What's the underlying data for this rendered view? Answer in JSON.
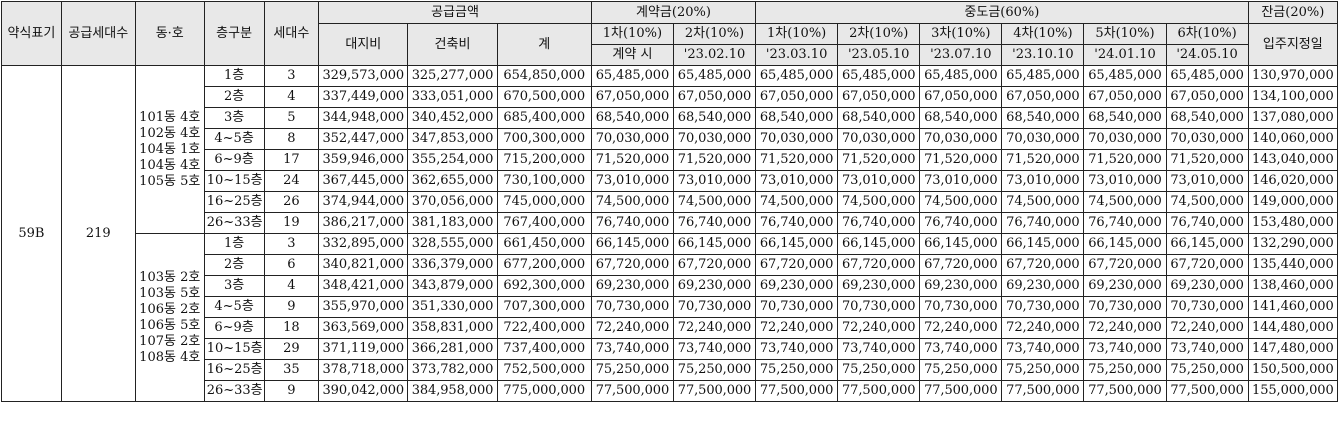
{
  "header": {
    "type_label": "약식표기",
    "supply_units_label": "공급세대수",
    "dong_ho_label": "동·호",
    "floor_label": "층구분",
    "units_label": "세대수",
    "supply_price_label": "공급금액",
    "land_label": "대지비",
    "building_label": "건축비",
    "total_label": "계",
    "contract_label": "계약금(20%)",
    "interim_label": "중도금(60%)",
    "balance_label": "잔금(20%)",
    "contract_installments": [
      {
        "name": "1차(10%)",
        "date": "계약 시"
      },
      {
        "name": "2차(10%)",
        "date": "'23.02.10"
      }
    ],
    "interim_installments": [
      {
        "name": "1차(10%)",
        "date": "'23.03.10"
      },
      {
        "name": "2차(10%)",
        "date": "'23.05.10"
      },
      {
        "name": "3차(10%)",
        "date": "'23.07.10"
      },
      {
        "name": "4차(10%)",
        "date": "'23.10.10"
      },
      {
        "name": "5차(10%)",
        "date": "'24.01.10"
      },
      {
        "name": "6차(10%)",
        "date": "'24.05.10"
      }
    ],
    "balance_date": "입주지정일"
  },
  "type": "59B",
  "supply_units": "219",
  "groups": [
    {
      "dong_ho": [
        "101동 4호",
        "102동 4호",
        "104동 1호",
        "104동 4호",
        "105동 5호"
      ],
      "rows": [
        {
          "floor": "1층",
          "units": "3",
          "land": "329,573,000",
          "building": "325,277,000",
          "total": "654,850,000",
          "c1": "65,485,000",
          "c2": "65,485,000",
          "i1": "65,485,000",
          "i2": "65,485,000",
          "i3": "65,485,000",
          "i4": "65,485,000",
          "i5": "65,485,000",
          "i6": "65,485,000",
          "bal": "130,970,000"
        },
        {
          "floor": "2층",
          "units": "4",
          "land": "337,449,000",
          "building": "333,051,000",
          "total": "670,500,000",
          "c1": "67,050,000",
          "c2": "67,050,000",
          "i1": "67,050,000",
          "i2": "67,050,000",
          "i3": "67,050,000",
          "i4": "67,050,000",
          "i5": "67,050,000",
          "i6": "67,050,000",
          "bal": "134,100,000"
        },
        {
          "floor": "3층",
          "units": "5",
          "land": "344,948,000",
          "building": "340,452,000",
          "total": "685,400,000",
          "c1": "68,540,000",
          "c2": "68,540,000",
          "i1": "68,540,000",
          "i2": "68,540,000",
          "i3": "68,540,000",
          "i4": "68,540,000",
          "i5": "68,540,000",
          "i6": "68,540,000",
          "bal": "137,080,000"
        },
        {
          "floor": "4~5층",
          "units": "8",
          "land": "352,447,000",
          "building": "347,853,000",
          "total": "700,300,000",
          "c1": "70,030,000",
          "c2": "70,030,000",
          "i1": "70,030,000",
          "i2": "70,030,000",
          "i3": "70,030,000",
          "i4": "70,030,000",
          "i5": "70,030,000",
          "i6": "70,030,000",
          "bal": "140,060,000"
        },
        {
          "floor": "6~9층",
          "units": "17",
          "land": "359,946,000",
          "building": "355,254,000",
          "total": "715,200,000",
          "c1": "71,520,000",
          "c2": "71,520,000",
          "i1": "71,520,000",
          "i2": "71,520,000",
          "i3": "71,520,000",
          "i4": "71,520,000",
          "i5": "71,520,000",
          "i6": "71,520,000",
          "bal": "143,040,000"
        },
        {
          "floor": "10~15층",
          "units": "24",
          "land": "367,445,000",
          "building": "362,655,000",
          "total": "730,100,000",
          "c1": "73,010,000",
          "c2": "73,010,000",
          "i1": "73,010,000",
          "i2": "73,010,000",
          "i3": "73,010,000",
          "i4": "73,010,000",
          "i5": "73,010,000",
          "i6": "73,010,000",
          "bal": "146,020,000"
        },
        {
          "floor": "16~25층",
          "units": "26",
          "land": "374,944,000",
          "building": "370,056,000",
          "total": "745,000,000",
          "c1": "74,500,000",
          "c2": "74,500,000",
          "i1": "74,500,000",
          "i2": "74,500,000",
          "i3": "74,500,000",
          "i4": "74,500,000",
          "i5": "74,500,000",
          "i6": "74,500,000",
          "bal": "149,000,000"
        },
        {
          "floor": "26~33층",
          "units": "19",
          "land": "386,217,000",
          "building": "381,183,000",
          "total": "767,400,000",
          "c1": "76,740,000",
          "c2": "76,740,000",
          "i1": "76,740,000",
          "i2": "76,740,000",
          "i3": "76,740,000",
          "i4": "76,740,000",
          "i5": "76,740,000",
          "i6": "76,740,000",
          "bal": "153,480,000"
        }
      ]
    },
    {
      "dong_ho": [
        "103동 2호",
        "103동 5호",
        "106동 2호",
        "106동 5호",
        "107동 2호",
        "108동 4호"
      ],
      "rows": [
        {
          "floor": "1층",
          "units": "3",
          "land": "332,895,000",
          "building": "328,555,000",
          "total": "661,450,000",
          "c1": "66,145,000",
          "c2": "66,145,000",
          "i1": "66,145,000",
          "i2": "66,145,000",
          "i3": "66,145,000",
          "i4": "66,145,000",
          "i5": "66,145,000",
          "i6": "66,145,000",
          "bal": "132,290,000"
        },
        {
          "floor": "2층",
          "units": "6",
          "land": "340,821,000",
          "building": "336,379,000",
          "total": "677,200,000",
          "c1": "67,720,000",
          "c2": "67,720,000",
          "i1": "67,720,000",
          "i2": "67,720,000",
          "i3": "67,720,000",
          "i4": "67,720,000",
          "i5": "67,720,000",
          "i6": "67,720,000",
          "bal": "135,440,000"
        },
        {
          "floor": "3층",
          "units": "4",
          "land": "348,421,000",
          "building": "343,879,000",
          "total": "692,300,000",
          "c1": "69,230,000",
          "c2": "69,230,000",
          "i1": "69,230,000",
          "i2": "69,230,000",
          "i3": "69,230,000",
          "i4": "69,230,000",
          "i5": "69,230,000",
          "i6": "69,230,000",
          "bal": "138,460,000"
        },
        {
          "floor": "4~5층",
          "units": "9",
          "land": "355,970,000",
          "building": "351,330,000",
          "total": "707,300,000",
          "c1": "70,730,000",
          "c2": "70,730,000",
          "i1": "70,730,000",
          "i2": "70,730,000",
          "i3": "70,730,000",
          "i4": "70,730,000",
          "i5": "70,730,000",
          "i6": "70,730,000",
          "bal": "141,460,000"
        },
        {
          "floor": "6~9층",
          "units": "18",
          "land": "363,569,000",
          "building": "358,831,000",
          "total": "722,400,000",
          "c1": "72,240,000",
          "c2": "72,240,000",
          "i1": "72,240,000",
          "i2": "72,240,000",
          "i3": "72,240,000",
          "i4": "72,240,000",
          "i5": "72,240,000",
          "i6": "72,240,000",
          "bal": "144,480,000"
        },
        {
          "floor": "10~15층",
          "units": "29",
          "land": "371,119,000",
          "building": "366,281,000",
          "total": "737,400,000",
          "c1": "73,740,000",
          "c2": "73,740,000",
          "i1": "73,740,000",
          "i2": "73,740,000",
          "i3": "73,740,000",
          "i4": "73,740,000",
          "i5": "73,740,000",
          "i6": "73,740,000",
          "bal": "147,480,000"
        },
        {
          "floor": "16~25층",
          "units": "35",
          "land": "378,718,000",
          "building": "373,782,000",
          "total": "752,500,000",
          "c1": "75,250,000",
          "c2": "75,250,000",
          "i1": "75,250,000",
          "i2": "75,250,000",
          "i3": "75,250,000",
          "i4": "75,250,000",
          "i5": "75,250,000",
          "i6": "75,250,000",
          "bal": "150,500,000"
        },
        {
          "floor": "26~33층",
          "units": "9",
          "land": "390,042,000",
          "building": "384,958,000",
          "total": "775,000,000",
          "c1": "77,500,000",
          "c2": "77,500,000",
          "i1": "77,500,000",
          "i2": "77,500,000",
          "i3": "77,500,000",
          "i4": "77,500,000",
          "i5": "77,500,000",
          "i6": "77,500,000",
          "bal": "155,000,000"
        }
      ]
    }
  ]
}
